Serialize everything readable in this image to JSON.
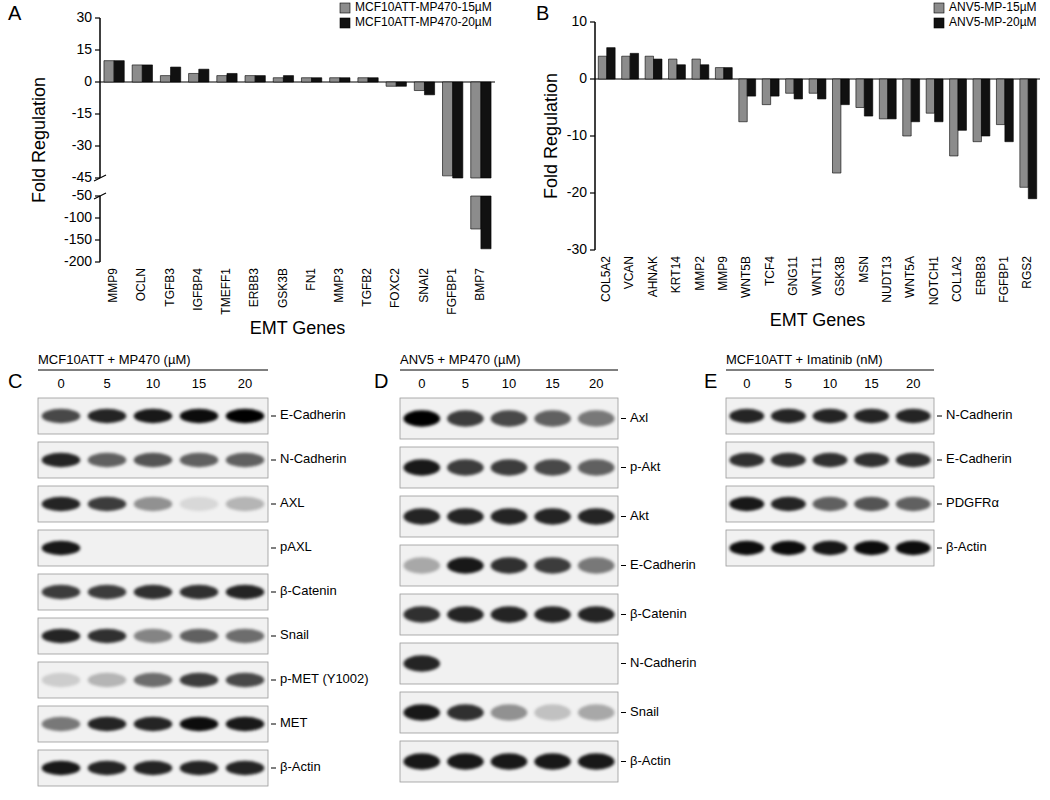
{
  "chart_data": [
    {
      "type": "bar",
      "panel": "A",
      "x_label": "EMT Genes",
      "y_label": "Fold Regulation",
      "categories": [
        "MMP9",
        "OCLN",
        "TGFB3",
        "IGFBP4",
        "TMEFF1",
        "ERBB3",
        "GSK3B",
        "FN1",
        "MMP3",
        "TGFB2",
        "FOXC2",
        "SNAI2",
        "FGFBP1",
        "BMP7"
      ],
      "series": [
        {
          "name": "MCF10ATT-MP470-15µM",
          "color": "#8c8c8c",
          "values": [
            10,
            8,
            3,
            4,
            3,
            3,
            2,
            2,
            2,
            2,
            -2,
            -4,
            -44,
            -125
          ]
        },
        {
          "name": "MCF10ATT-MP470-20µM",
          "color": "#111111",
          "values": [
            10,
            8,
            7,
            6,
            4,
            3,
            3,
            2,
            2,
            2,
            -2,
            -6,
            -45,
            -170
          ]
        }
      ],
      "ylim": [
        -200,
        30
      ],
      "ybreak": [
        -50,
        -45
      ],
      "yticks": [
        30,
        15,
        0,
        -15,
        -30,
        -45,
        -50,
        -100,
        -150,
        -200
      ],
      "legend": "upper right"
    },
    {
      "type": "bar",
      "panel": "B",
      "x_label": "EMT Genes",
      "y_label": "Fold Regulation",
      "categories": [
        "COL5A2",
        "VCAN",
        "AHNAK",
        "KRT14",
        "MMP2",
        "MMP9",
        "WNT5B",
        "TCF4",
        "GNG11",
        "WNT11",
        "GSK3B",
        "MSN",
        "NUDT13",
        "WNT5A",
        "NOTCH1",
        "COL1A2",
        "ERBB3",
        "FGFBP1",
        "RGS2"
      ],
      "series": [
        {
          "name": "ANV5-MP-15µM",
          "color": "#8c8c8c",
          "values": [
            4,
            4,
            4,
            3.5,
            3.5,
            2,
            -7.5,
            -4.5,
            -2.5,
            -2.5,
            -16.5,
            -5,
            -7,
            -10,
            -6,
            -13.5,
            -11,
            -8,
            -19
          ]
        },
        {
          "name": "ANV5-MP-20µM",
          "color": "#111111",
          "values": [
            5.5,
            4.5,
            3.5,
            2.5,
            2.5,
            2,
            -3,
            -3,
            -3.5,
            -3.5,
            -4.5,
            -6.5,
            -7,
            -7.5,
            -7.5,
            -9,
            -10,
            -11,
            -21
          ]
        }
      ],
      "ylim": [
        -30,
        10
      ],
      "yticks": [
        10,
        0,
        -10,
        -20,
        -30
      ],
      "legend": "upper right"
    }
  ],
  "blots": [
    {
      "panel": "C",
      "title": "MCF10ATT + MP470 (µM)",
      "lanes": [
        0,
        5,
        10,
        15,
        20
      ],
      "rows": [
        {
          "label": "E-Cadherin",
          "bands": [
            0.7,
            0.85,
            0.9,
            0.95,
            1
          ]
        },
        {
          "label": "N-Cadherin",
          "bands": [
            0.85,
            0.6,
            0.65,
            0.6,
            0.6
          ]
        },
        {
          "label": "AXL",
          "bands": [
            0.85,
            0.75,
            0.4,
            0.1,
            0.25
          ]
        },
        {
          "label": "pAXL",
          "bands": [
            0.9,
            0,
            0,
            0,
            0
          ]
        },
        {
          "label": "β-Catenin",
          "bands": [
            0.75,
            0.75,
            0.8,
            0.8,
            0.85
          ]
        },
        {
          "label": "Snail",
          "bands": [
            0.85,
            0.8,
            0.45,
            0.6,
            0.55
          ]
        },
        {
          "label": "p-MET (Y1002)",
          "bands": [
            0.15,
            0.25,
            0.55,
            0.75,
            0.7
          ]
        },
        {
          "label": "MET",
          "bands": [
            0.5,
            0.85,
            0.85,
            0.95,
            0.9
          ]
        },
        {
          "label": "β-Actin",
          "bands": [
            0.9,
            0.85,
            0.85,
            0.85,
            0.85
          ]
        }
      ]
    },
    {
      "panel": "D",
      "title": "ANV5 + MP470 (µM)",
      "lanes": [
        0,
        5,
        10,
        15,
        20
      ],
      "rows": [
        {
          "label": "Axl",
          "bands": [
            1,
            0.75,
            0.7,
            0.6,
            0.5
          ]
        },
        {
          "label": "p-Akt",
          "bands": [
            0.9,
            0.75,
            0.75,
            0.7,
            0.6
          ]
        },
        {
          "label": "Akt",
          "bands": [
            0.85,
            0.85,
            0.85,
            0.85,
            0.85
          ]
        },
        {
          "label": "E-Cadherin",
          "bands": [
            0.3,
            0.9,
            0.8,
            0.75,
            0.5
          ]
        },
        {
          "label": "β-Catenin",
          "bands": [
            0.8,
            0.85,
            0.85,
            0.85,
            0.85
          ]
        },
        {
          "label": "N-Cadherin",
          "bands": [
            0.85,
            0,
            0,
            0,
            0
          ]
        },
        {
          "label": "Snail",
          "bands": [
            0.9,
            0.8,
            0.4,
            0.2,
            0.3
          ]
        },
        {
          "label": "β-Actin",
          "bands": [
            0.9,
            0.9,
            0.9,
            0.9,
            0.9
          ]
        }
      ]
    },
    {
      "panel": "E",
      "title": "MCF10ATT + Imatinib (nM)",
      "lanes": [
        0,
        5,
        10,
        15,
        20
      ],
      "rows": [
        {
          "label": "N-Cadherin",
          "bands": [
            0.85,
            0.85,
            0.85,
            0.85,
            0.85
          ]
        },
        {
          "label": "E-Cadherin",
          "bands": [
            0.8,
            0.8,
            0.8,
            0.8,
            0.8
          ]
        },
        {
          "label": "PDGFRα",
          "bands": [
            0.9,
            0.85,
            0.6,
            0.65,
            0.6
          ]
        },
        {
          "label": "β-Actin",
          "bands": [
            0.95,
            0.95,
            0.9,
            0.95,
            0.95
          ]
        }
      ]
    }
  ]
}
